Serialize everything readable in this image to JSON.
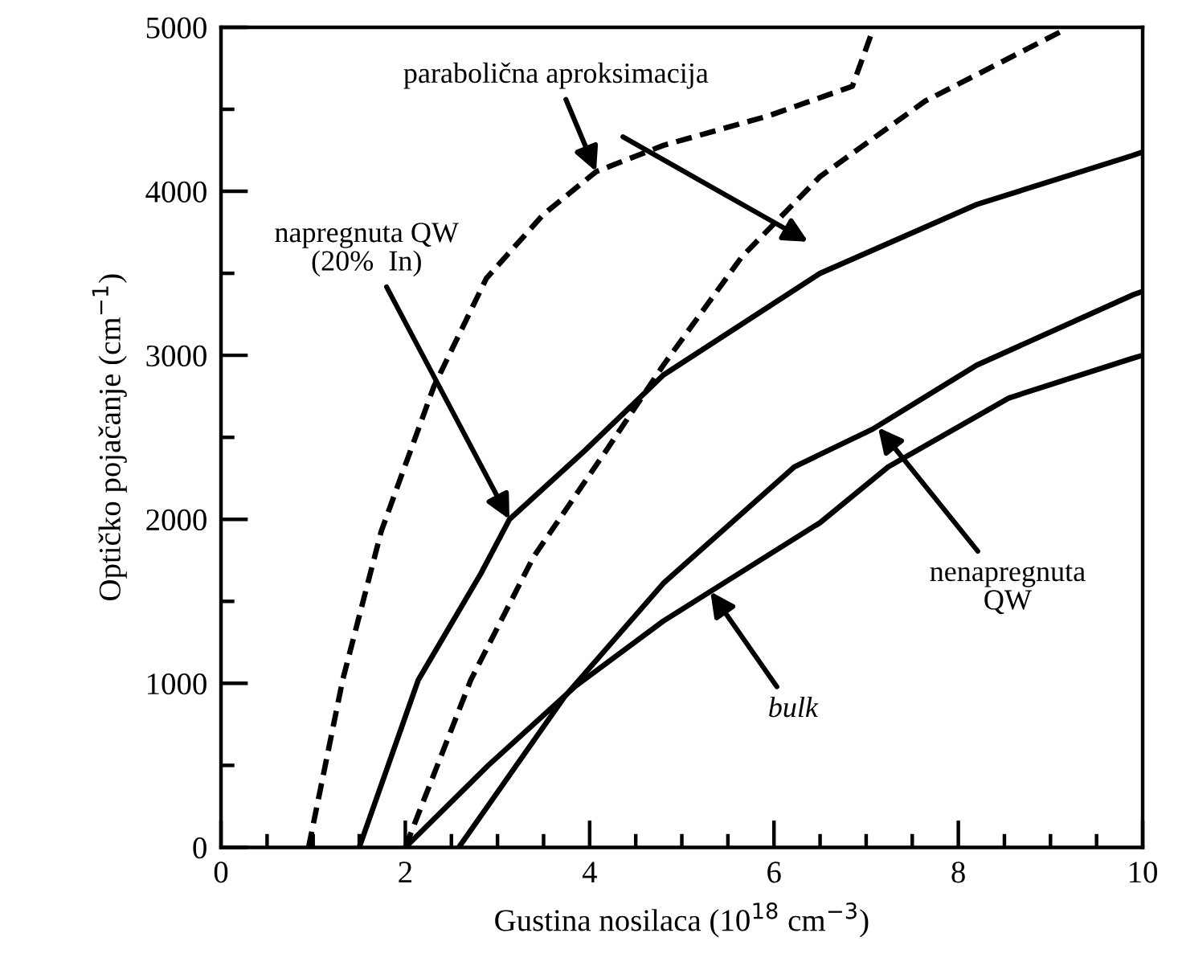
{
  "chart_data": {
    "type": "line",
    "xlabel": "Gustina nosilaca (10$^{18}$ cm$^{−3}$)",
    "ylabel": "Optičko pojačanje (cm$^{−1}$)",
    "xlim": [
      0,
      10
    ],
    "ylim": [
      0,
      5000
    ],
    "xticks": [
      0,
      {
        "value": 0.5,
        "label": null
      },
      {
        "value": 1,
        "label": null
      },
      {
        "value": 1.5,
        "label": null
      },
      2,
      {
        "value": 2.5,
        "label": null
      },
      {
        "value": 3,
        "label": null
      },
      {
        "value": 3.5,
        "label": null
      },
      4,
      {
        "value": 4.5,
        "label": null
      },
      {
        "value": 5,
        "label": null
      },
      {
        "value": 5.5,
        "label": null
      },
      6,
      {
        "value": 6.5,
        "label": null
      },
      {
        "value": 7,
        "label": null
      },
      {
        "value": 7.5,
        "label": null
      },
      8,
      {
        "value": 8.5,
        "label": null
      },
      {
        "value": 9,
        "label": null
      },
      {
        "value": 9.5,
        "label": null
      },
      10
    ],
    "yticks": [
      0,
      {
        "value": 500,
        "label": null
      },
      1000,
      {
        "value": 1500,
        "label": null
      },
      2000,
      {
        "value": 2500,
        "label": null
      },
      3000,
      {
        "value": 3500,
        "label": null
      },
      4000,
      {
        "value": 4500,
        "label": null
      },
      5000
    ],
    "grid": false,
    "legend": false,
    "marker": "none",
    "series": [
      {
        "color": "#000000",
        "line_style": "dashed",
        "x": [
          0.95,
          1.32,
          1.74,
          2.31,
          2.88,
          3.5,
          4.07,
          4.8,
          5.94,
          6.85,
          7.07
        ],
        "values": [
          0,
          1020,
          1930,
          2810,
          3470,
          3860,
          4120,
          4280,
          4460,
          4640,
          4980
        ]
      },
      {
        "color": "#000000",
        "line_style": "dashed",
        "x": [
          2.0,
          2.71,
          3.39,
          4.18,
          4.8,
          5.65,
          6.5,
          7.64,
          9.17
        ],
        "values": [
          0,
          1020,
          1770,
          2420,
          2940,
          3600,
          4090,
          4550,
          4990
        ]
      },
      {
        "color": "#000000",
        "line_style": "solid",
        "x": [
          1.5,
          2.14,
          2.82,
          3.13,
          3.95,
          4.8,
          6.5,
          8.2,
          9.9,
          10
        ],
        "values": [
          0,
          1020,
          1670,
          2000,
          2420,
          2880,
          3500,
          3920,
          4220,
          4240
        ]
      },
      {
        "color": "#000000",
        "line_style": "solid",
        "x": [
          2.58,
          3.73,
          4.8,
          6.22,
          7.07,
          8.2,
          9.9,
          10
        ],
        "values": [
          0,
          920,
          1610,
          2320,
          2550,
          2940,
          3370,
          3390
        ]
      },
      {
        "color": "#000000",
        "line_style": "solid",
        "x": [
          2.0,
          2.9,
          3.84,
          4.8,
          5.31,
          6.5,
          7.24,
          8.55,
          9.88,
          10
        ],
        "values": [
          0,
          500,
          980,
          1380,
          1560,
          1980,
          2320,
          2740,
          2980,
          3000
        ]
      }
    ],
    "annotations": [
      {
        "text": "parabolična aproksimacija",
        "x": 4.07,
        "y": 4120
      },
      {
        "text": "napregnuta QW\n(20%  In)",
        "x": 3.13,
        "y": 2000
      },
      {
        "text": "nenapregnuta\nQW",
        "x": 7.13,
        "y": 2560
      },
      {
        "text": "bulk",
        "x": 5.31,
        "y": 1560
      }
    ]
  }
}
